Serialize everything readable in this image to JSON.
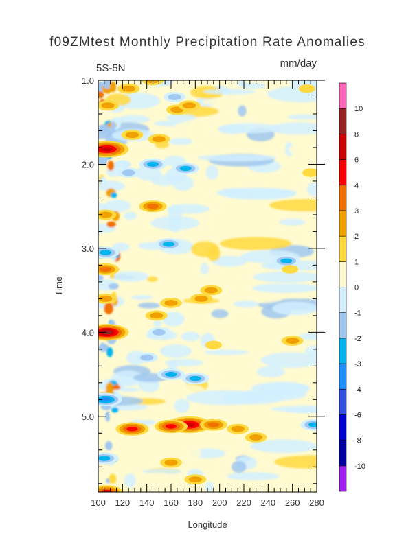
{
  "chart_data": {
    "type": "heatmap",
    "title": "f09ZMtest Monthly Precipitation Rate Anomalies",
    "region_label": "5S-5N",
    "units": "mm/day",
    "xlabel": "Longitude",
    "ylabel": "Time",
    "xlim": [
      100,
      280
    ],
    "ylim": [
      1.0,
      5.9
    ],
    "x_ticks": [
      100,
      120,
      140,
      160,
      180,
      200,
      220,
      240,
      260,
      280
    ],
    "y_ticks": [
      1.0,
      2.0,
      3.0,
      4.0,
      5.0
    ],
    "y_tick_labels": [
      "1.0",
      "2.0",
      "3.0",
      "4.0",
      "5.0"
    ],
    "y_direction": "down",
    "colorbar": {
      "placement": "right",
      "levels": [
        -10,
        -8,
        -6,
        -4,
        -3,
        -2,
        -1,
        0,
        1,
        2,
        3,
        4,
        6,
        8,
        10
      ],
      "labels": [
        "-10",
        "-8",
        "-6",
        "-4",
        "-3",
        "-2",
        "-1",
        "0",
        "1",
        "2",
        "3",
        "4",
        "6",
        "8",
        "10"
      ],
      "colors": [
        "#a020f0",
        "#0000a0",
        "#0000d0",
        "#3050e0",
        "#1e90ff",
        "#00b4f0",
        "#a0c8f0",
        "#d2f0ff",
        "#fffad0",
        "#ffd940",
        "#f0a000",
        "#f07000",
        "#ff0000",
        "#cc0000",
        "#992222",
        "#ff66bb"
      ]
    },
    "features": [
      {
        "lon": 107,
        "time": 4.0,
        "value": 8
      },
      {
        "lon": 107,
        "time": 1.82,
        "value": 6
      },
      {
        "lon": 108,
        "time": 1.3,
        "value": 2
      },
      {
        "lon": 106,
        "time": 2.6,
        "value": 2
      },
      {
        "lon": 106,
        "time": 3.25,
        "value": 3
      },
      {
        "lon": 106,
        "time": 3.6,
        "value": 2
      },
      {
        "lon": 106,
        "time": 4.8,
        "value": -4
      },
      {
        "lon": 105,
        "time": 5.5,
        "value": -3
      },
      {
        "lon": 107,
        "time": 5.9,
        "value": 4
      },
      {
        "lon": 106,
        "time": 3.05,
        "value": -3
      },
      {
        "lon": 125,
        "time": 1.1,
        "value": 2
      },
      {
        "lon": 128,
        "time": 1.65,
        "value": 2
      },
      {
        "lon": 125,
        "time": 2.1,
        "value": -2
      },
      {
        "lon": 145,
        "time": 1.0,
        "value": 2
      },
      {
        "lon": 165,
        "time": 1.35,
        "value": 2
      },
      {
        "lon": 175,
        "time": 1.3,
        "value": 2
      },
      {
        "lon": 150,
        "time": 1.7,
        "value": 2
      },
      {
        "lon": 145,
        "time": 2.0,
        "value": -3
      },
      {
        "lon": 172,
        "time": 2.05,
        "value": -3
      },
      {
        "lon": 145,
        "time": 2.5,
        "value": 3
      },
      {
        "lon": 158,
        "time": 2.95,
        "value": -3
      },
      {
        "lon": 163,
        "time": 1.2,
        "value": -2
      },
      {
        "lon": 120,
        "time": 2.0,
        "value": -1
      },
      {
        "lon": 185,
        "time": 3.6,
        "value": 2
      },
      {
        "lon": 160,
        "time": 3.65,
        "value": 2
      },
      {
        "lon": 148,
        "time": 3.8,
        "value": 2
      },
      {
        "lon": 193,
        "time": 3.5,
        "value": 2
      },
      {
        "lon": 150,
        "time": 4.0,
        "value": -2
      },
      {
        "lon": 195,
        "time": 4.15,
        "value": 1
      },
      {
        "lon": 260,
        "time": 4.1,
        "value": 2
      },
      {
        "lon": 255,
        "time": 3.15,
        "value": -3
      },
      {
        "lon": 258,
        "time": 3.25,
        "value": 1
      },
      {
        "lon": 275,
        "time": 2.1,
        "value": 1
      },
      {
        "lon": 272,
        "time": 1.1,
        "value": 1
      },
      {
        "lon": 160,
        "time": 4.5,
        "value": -3
      },
      {
        "lon": 180,
        "time": 4.55,
        "value": -3
      },
      {
        "lon": 140,
        "time": 4.3,
        "value": -2
      },
      {
        "lon": 128,
        "time": 5.15,
        "value": 4
      },
      {
        "lon": 175,
        "time": 5.1,
        "value": 6
      },
      {
        "lon": 160,
        "time": 5.12,
        "value": 4
      },
      {
        "lon": 195,
        "time": 5.1,
        "value": 3
      },
      {
        "lon": 215,
        "time": 5.15,
        "value": 2
      },
      {
        "lon": 230,
        "time": 5.25,
        "value": 2
      },
      {
        "lon": 160,
        "time": 5.55,
        "value": 2
      },
      {
        "lon": 180,
        "time": 5.75,
        "value": 2
      },
      {
        "lon": 278,
        "time": 5.1,
        "value": -3
      }
    ]
  }
}
